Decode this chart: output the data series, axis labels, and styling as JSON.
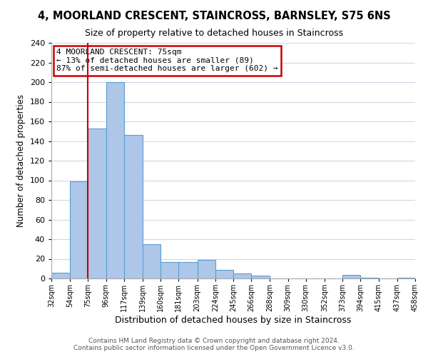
{
  "title": "4, MOORLAND CRESCENT, STAINCROSS, BARNSLEY, S75 6NS",
  "subtitle": "Size of property relative to detached houses in Staincross",
  "xlabel": "Distribution of detached houses by size in Staincross",
  "ylabel": "Number of detached properties",
  "bin_edges": [
    32,
    54,
    75,
    96,
    117,
    139,
    160,
    181,
    203,
    224,
    245,
    266,
    288,
    309,
    330,
    352,
    373,
    394,
    415,
    437,
    458
  ],
  "counts": [
    6,
    99,
    153,
    200,
    146,
    35,
    17,
    17,
    19,
    9,
    5,
    3,
    0,
    0,
    0,
    0,
    4,
    1,
    0,
    1
  ],
  "bar_color": "#aec6e8",
  "bar_edge_color": "#5a9fd4",
  "marker_value": 75,
  "marker_color": "#cc0000",
  "annotation_title": "4 MOORLAND CRESCENT: 75sqm",
  "annotation_line1": "← 13% of detached houses are smaller (89)",
  "annotation_line2": "87% of semi-detached houses are larger (602) →",
  "annotation_box_color": "#cc0000",
  "ylim": [
    0,
    240
  ],
  "yticks": [
    0,
    20,
    40,
    60,
    80,
    100,
    120,
    140,
    160,
    180,
    200,
    220,
    240
  ],
  "tick_labels": [
    "32sqm",
    "54sqm",
    "75sqm",
    "96sqm",
    "117sqm",
    "139sqm",
    "160sqm",
    "181sqm",
    "203sqm",
    "224sqm",
    "245sqm",
    "266sqm",
    "288sqm",
    "309sqm",
    "330sqm",
    "352sqm",
    "373sqm",
    "394sqm",
    "415sqm",
    "437sqm",
    "458sqm"
  ],
  "footer_line1": "Contains HM Land Registry data © Crown copyright and database right 2024.",
  "footer_line2": "Contains public sector information licensed under the Open Government Licence v3.0.",
  "background_color": "#ffffff",
  "grid_color": "#cdd9e5"
}
